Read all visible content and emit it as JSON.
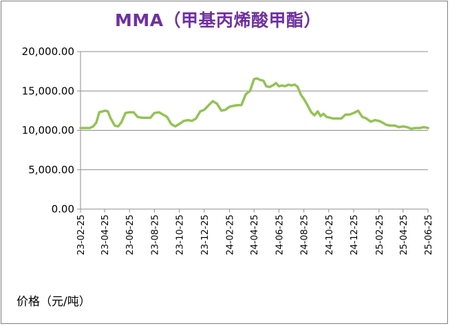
{
  "chart_data": {
    "type": "line",
    "title": "MMA（甲基丙烯酸甲酯）",
    "ylabel": "价格（元/吨）",
    "ylim": [
      0,
      20000
    ],
    "yticks": [
      0,
      5000,
      10000,
      15000,
      20000
    ],
    "ytick_labels": [
      "0.00",
      "5,000.00",
      "10,000.00",
      "15,000.00",
      "20,000.00"
    ],
    "xrange": [
      "2023-02-25",
      "2025-06-25"
    ],
    "xtick_labels": [
      "23-02-25",
      "23-04-25",
      "23-06-25",
      "23-08-25",
      "23-10-25",
      "23-12-25",
      "24-02-25",
      "24-04-25",
      "24-06-25",
      "24-08-25",
      "24-10-25",
      "24-12-25",
      "25-02-25",
      "25-04-25",
      "25-06-25"
    ],
    "xtick_dates": [
      "2023-02-25",
      "2023-04-25",
      "2023-06-25",
      "2023-08-25",
      "2023-10-25",
      "2023-12-25",
      "2024-02-25",
      "2024-04-25",
      "2024-06-25",
      "2024-08-25",
      "2024-10-25",
      "2024-12-25",
      "2025-02-25",
      "2025-04-25",
      "2025-06-25"
    ],
    "grid": true,
    "line_color": "#92c353",
    "series": [
      {
        "name": "",
        "x": [
          "2023-02-25",
          "2023-03-10",
          "2023-03-20",
          "2023-03-28",
          "2023-04-05",
          "2023-04-12",
          "2023-04-20",
          "2023-04-26",
          "2023-05-03",
          "2023-05-10",
          "2023-05-20",
          "2023-05-28",
          "2023-06-05",
          "2023-06-15",
          "2023-06-25",
          "2023-07-05",
          "2023-07-15",
          "2023-07-25",
          "2023-08-05",
          "2023-08-15",
          "2023-08-25",
          "2023-09-05",
          "2023-09-15",
          "2023-09-25",
          "2023-10-05",
          "2023-10-15",
          "2023-10-25",
          "2023-11-05",
          "2023-11-15",
          "2023-11-25",
          "2023-12-05",
          "2023-12-15",
          "2023-12-25",
          "2024-01-05",
          "2024-01-15",
          "2024-01-25",
          "2024-02-05",
          "2024-02-15",
          "2024-02-25",
          "2024-03-05",
          "2024-03-15",
          "2024-03-25",
          "2024-04-05",
          "2024-04-15",
          "2024-04-25",
          "2024-05-02",
          "2024-05-10",
          "2024-05-18",
          "2024-05-25",
          "2024-06-02",
          "2024-06-10",
          "2024-06-18",
          "2024-06-25",
          "2024-07-03",
          "2024-07-10",
          "2024-07-18",
          "2024-07-25",
          "2024-08-03",
          "2024-08-10",
          "2024-08-18",
          "2024-08-25",
          "2024-09-03",
          "2024-09-12",
          "2024-09-20",
          "2024-09-28",
          "2024-10-05",
          "2024-10-12",
          "2024-10-20",
          "2024-10-28",
          "2024-11-05",
          "2024-11-15",
          "2024-11-25",
          "2024-12-05",
          "2024-12-15",
          "2024-12-25",
          "2025-01-05",
          "2025-01-15",
          "2025-01-25",
          "2025-02-05",
          "2025-02-15",
          "2025-02-25",
          "2025-03-05",
          "2025-03-15",
          "2025-03-25",
          "2025-04-05",
          "2025-04-15",
          "2025-04-25",
          "2025-05-05",
          "2025-05-15",
          "2025-05-25",
          "2025-06-05",
          "2025-06-15",
          "2025-06-25"
        ],
        "values": [
          10300,
          10300,
          10300,
          10500,
          11000,
          12300,
          12400,
          12500,
          12400,
          11500,
          10600,
          10500,
          11000,
          12200,
          12300,
          12300,
          11700,
          11600,
          11600,
          11600,
          12200,
          12300,
          12000,
          11700,
          10800,
          10500,
          10800,
          11200,
          11300,
          11200,
          11500,
          12400,
          12600,
          13200,
          13700,
          13400,
          12500,
          12600,
          13000,
          13100,
          13200,
          13200,
          14600,
          15000,
          16500,
          16600,
          16400,
          16300,
          15600,
          15500,
          15700,
          16000,
          15600,
          15700,
          15600,
          15800,
          15700,
          15800,
          15500,
          14500,
          14000,
          13200,
          12300,
          11900,
          12400,
          11800,
          12100,
          11700,
          11600,
          11500,
          11500,
          11500,
          12000,
          12000,
          12200,
          12500,
          11700,
          11500,
          11100,
          11300,
          11200,
          11000,
          10700,
          10600,
          10600,
          10400,
          10500,
          10400,
          10200,
          10300,
          10300,
          10400,
          10300
        ]
      }
    ]
  }
}
